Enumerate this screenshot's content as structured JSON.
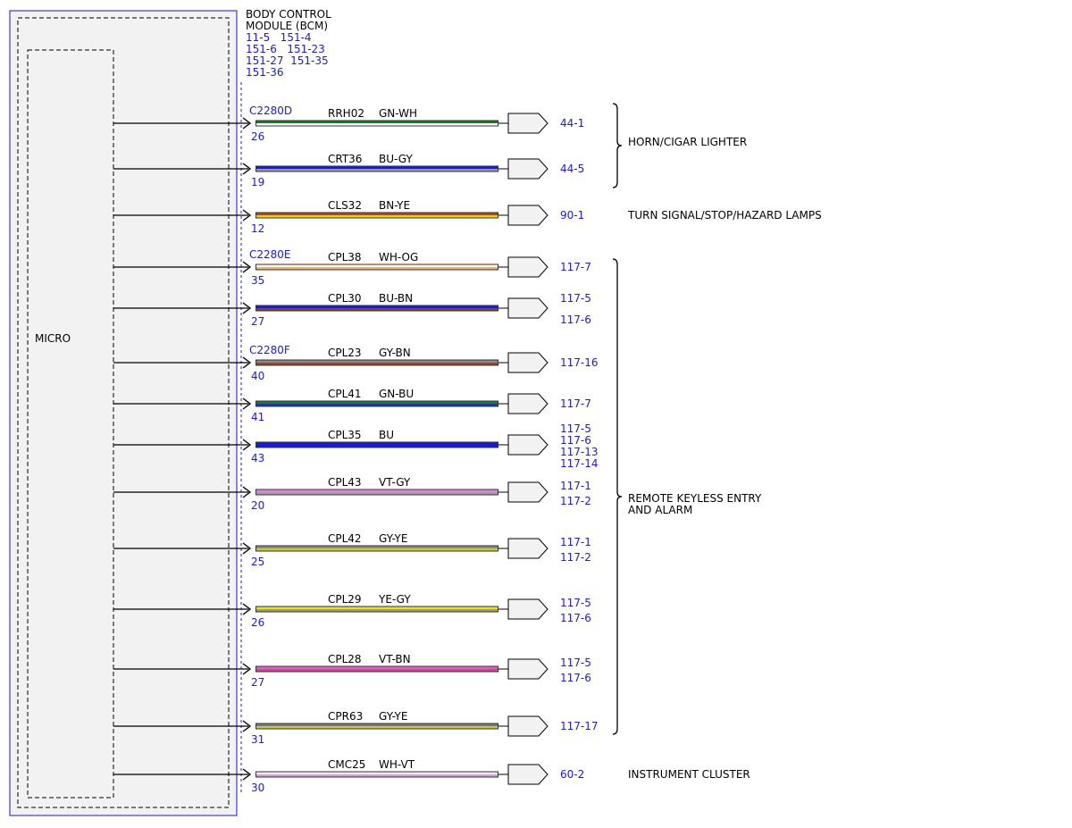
{
  "module": {
    "name_lines": [
      "BODY CONTROL",
      "MODULE (BCM)"
    ],
    "ref_lines": [
      "11-5   151-4",
      "151-6   151-23",
      "151-27  151-35",
      "151-36"
    ],
    "micro_label": "MICRO"
  },
  "colors": {
    "module_border": "#3a3ad6",
    "module_fill": "#f2f2f2",
    "ref_text": "#1a1adb",
    "label_text": "#000000"
  },
  "circuits": [
    {
      "connector": "C2280D",
      "pin": "26",
      "circuit": "RRH02",
      "wire_color": "GN-WH",
      "stripes": [
        "#1d7a1d",
        "#ffffff"
      ],
      "refs": [
        "44-1"
      ]
    },
    {
      "connector": "",
      "pin": "19",
      "circuit": "CRT36",
      "wire_color": "BU-GY",
      "stripes": [
        "#1a1adb",
        "#9a9a9a"
      ],
      "refs": [
        "44-5"
      ]
    },
    {
      "connector": "",
      "pin": "12",
      "circuit": "CLS32",
      "wire_color": "BN-YE",
      "stripes": [
        "#a0521c",
        "#e8d400"
      ],
      "refs": [
        "90-1"
      ]
    },
    {
      "connector": "C2280E",
      "pin": "35",
      "circuit": "CPL38",
      "wire_color": "WH-OG",
      "stripes": [
        "#fff6e0",
        "#f0b070"
      ],
      "refs": [
        "117-7"
      ]
    },
    {
      "connector": "",
      "pin": "27",
      "circuit": "CPL30",
      "wire_color": "BU-BN",
      "stripes": [
        "#1a1adb",
        "#7a4a2a"
      ],
      "refs": [
        "117-5",
        "117-6"
      ]
    },
    {
      "connector": "C2280F",
      "pin": "40",
      "circuit": "CPL23",
      "wire_color": "GY-BN",
      "stripes": [
        "#8a8a8a",
        "#8b4a3a"
      ],
      "refs": [
        "117-16"
      ]
    },
    {
      "connector": "",
      "pin": "41",
      "circuit": "CPL41",
      "wire_color": "GN-BU",
      "stripes": [
        "#1d7a3a",
        "#1a3aa0"
      ],
      "refs": [
        "117-7"
      ]
    },
    {
      "connector": "",
      "pin": "43",
      "circuit": "CPL35",
      "wire_color": "BU",
      "stripes": [
        "#1a1adb",
        "#1a1adb"
      ],
      "refs": [
        "117-5",
        "117-6",
        "117-13",
        "117-14"
      ]
    },
    {
      "connector": "",
      "pin": "20",
      "circuit": "CPL43",
      "wire_color": "VT-GY",
      "stripes": [
        "#d48ad4",
        "#a0a0a0"
      ],
      "refs": [
        "117-1",
        "117-2"
      ]
    },
    {
      "connector": "",
      "pin": "25",
      "circuit": "CPL42",
      "wire_color": "GY-YE",
      "stripes": [
        "#8a8a8a",
        "#c8c840"
      ],
      "refs": [
        "117-1",
        "117-2"
      ]
    },
    {
      "connector": "",
      "pin": "26",
      "circuit": "CPL29",
      "wire_color": "YE-GY",
      "stripes": [
        "#e8e020",
        "#a0a060"
      ],
      "refs": [
        "117-5",
        "117-6"
      ]
    },
    {
      "connector": "",
      "pin": "27",
      "circuit": "CPL28",
      "wire_color": "VT-BN",
      "stripes": [
        "#e060c0",
        "#c05090"
      ],
      "refs": [
        "117-5",
        "117-6"
      ]
    },
    {
      "connector": "",
      "pin": "31",
      "circuit": "CPR63",
      "wire_color": "GY-YE",
      "stripes": [
        "#7a7a7a",
        "#c8c840"
      ],
      "refs": [
        "117-17"
      ]
    },
    {
      "connector": "",
      "pin": "30",
      "circuit": "CMC25",
      "wire_color": "WH-VT",
      "stripes": [
        "#f4e8f4",
        "#c8a8d0"
      ],
      "refs": [
        "60-2"
      ]
    }
  ],
  "groups": [
    {
      "label_lines": [
        "HORN/CIGAR LIGHTER"
      ],
      "bracket": true
    },
    {
      "label_lines": [
        "TURN SIGNAL/STOP/HAZARD LAMPS"
      ],
      "bracket": false
    },
    {
      "label_lines": [
        "REMOTE KEYLESS ENTRY",
        "AND ALARM"
      ],
      "bracket": true
    },
    {
      "label_lines": [
        "INSTRUMENT CLUSTER"
      ],
      "bracket": false
    }
  ]
}
